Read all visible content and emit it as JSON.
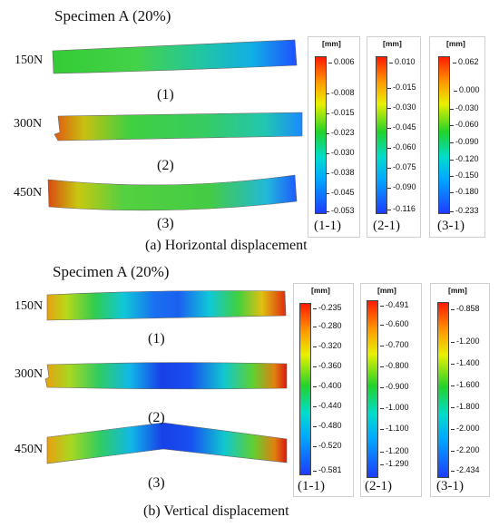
{
  "top": {
    "title": "Specimen A (20%)",
    "loads": [
      "150N",
      "300N",
      "450N"
    ],
    "nums": [
      "(1)",
      "(2)",
      "(3)"
    ],
    "caption": "(a) Horizontal displacement",
    "scales": [
      {
        "unit": "[mm]",
        "label": "(1-1)",
        "ticks": [
          "0.006",
          "-0.008",
          "-0.015",
          "-0.023",
          "-0.030",
          "-0.038",
          "-0.045",
          "-0.053"
        ]
      },
      {
        "unit": "[mm]",
        "label": "(2-1)",
        "ticks": [
          "0.010",
          "-0.015",
          "-0.030",
          "-0.045",
          "-0.060",
          "-0.075",
          "-0.090",
          "-0.116"
        ]
      },
      {
        "unit": "[mm]",
        "label": "(3-1)",
        "ticks": [
          "0.062",
          "0.000",
          "-0.030",
          "-0.060",
          "-0.090",
          "-0.120",
          "-0.150",
          "-0.180",
          "-0.233"
        ]
      }
    ]
  },
  "bottom": {
    "title": "Specimen A (20%)",
    "loads": [
      "150N",
      "300N",
      "450N"
    ],
    "nums": [
      "(1)",
      "(2)",
      "(3)"
    ],
    "caption": "(b) Vertical displacement",
    "scales": [
      {
        "unit": "[mm]",
        "label": "(1-1)",
        "ticks": [
          "-0.235",
          "-0.280",
          "-0.320",
          "-0.360",
          "-0.400",
          "-0.440",
          "-0.480",
          "-0.520",
          "-0.581"
        ]
      },
      {
        "unit": "[mm]",
        "label": "(2-1)",
        "ticks": [
          "-0.491",
          "-0.600",
          "-0.700",
          "-0.800",
          "-0.900",
          "-1.000",
          "-1.100",
          "-1.200",
          "-1.290"
        ]
      },
      {
        "unit": "[mm]",
        "label": "(3-1)",
        "ticks": [
          "-0.858",
          "-1.200",
          "-1.400",
          "-1.600",
          "-1.800",
          "-2.000",
          "-2.200",
          "-2.434"
        ]
      }
    ]
  }
}
